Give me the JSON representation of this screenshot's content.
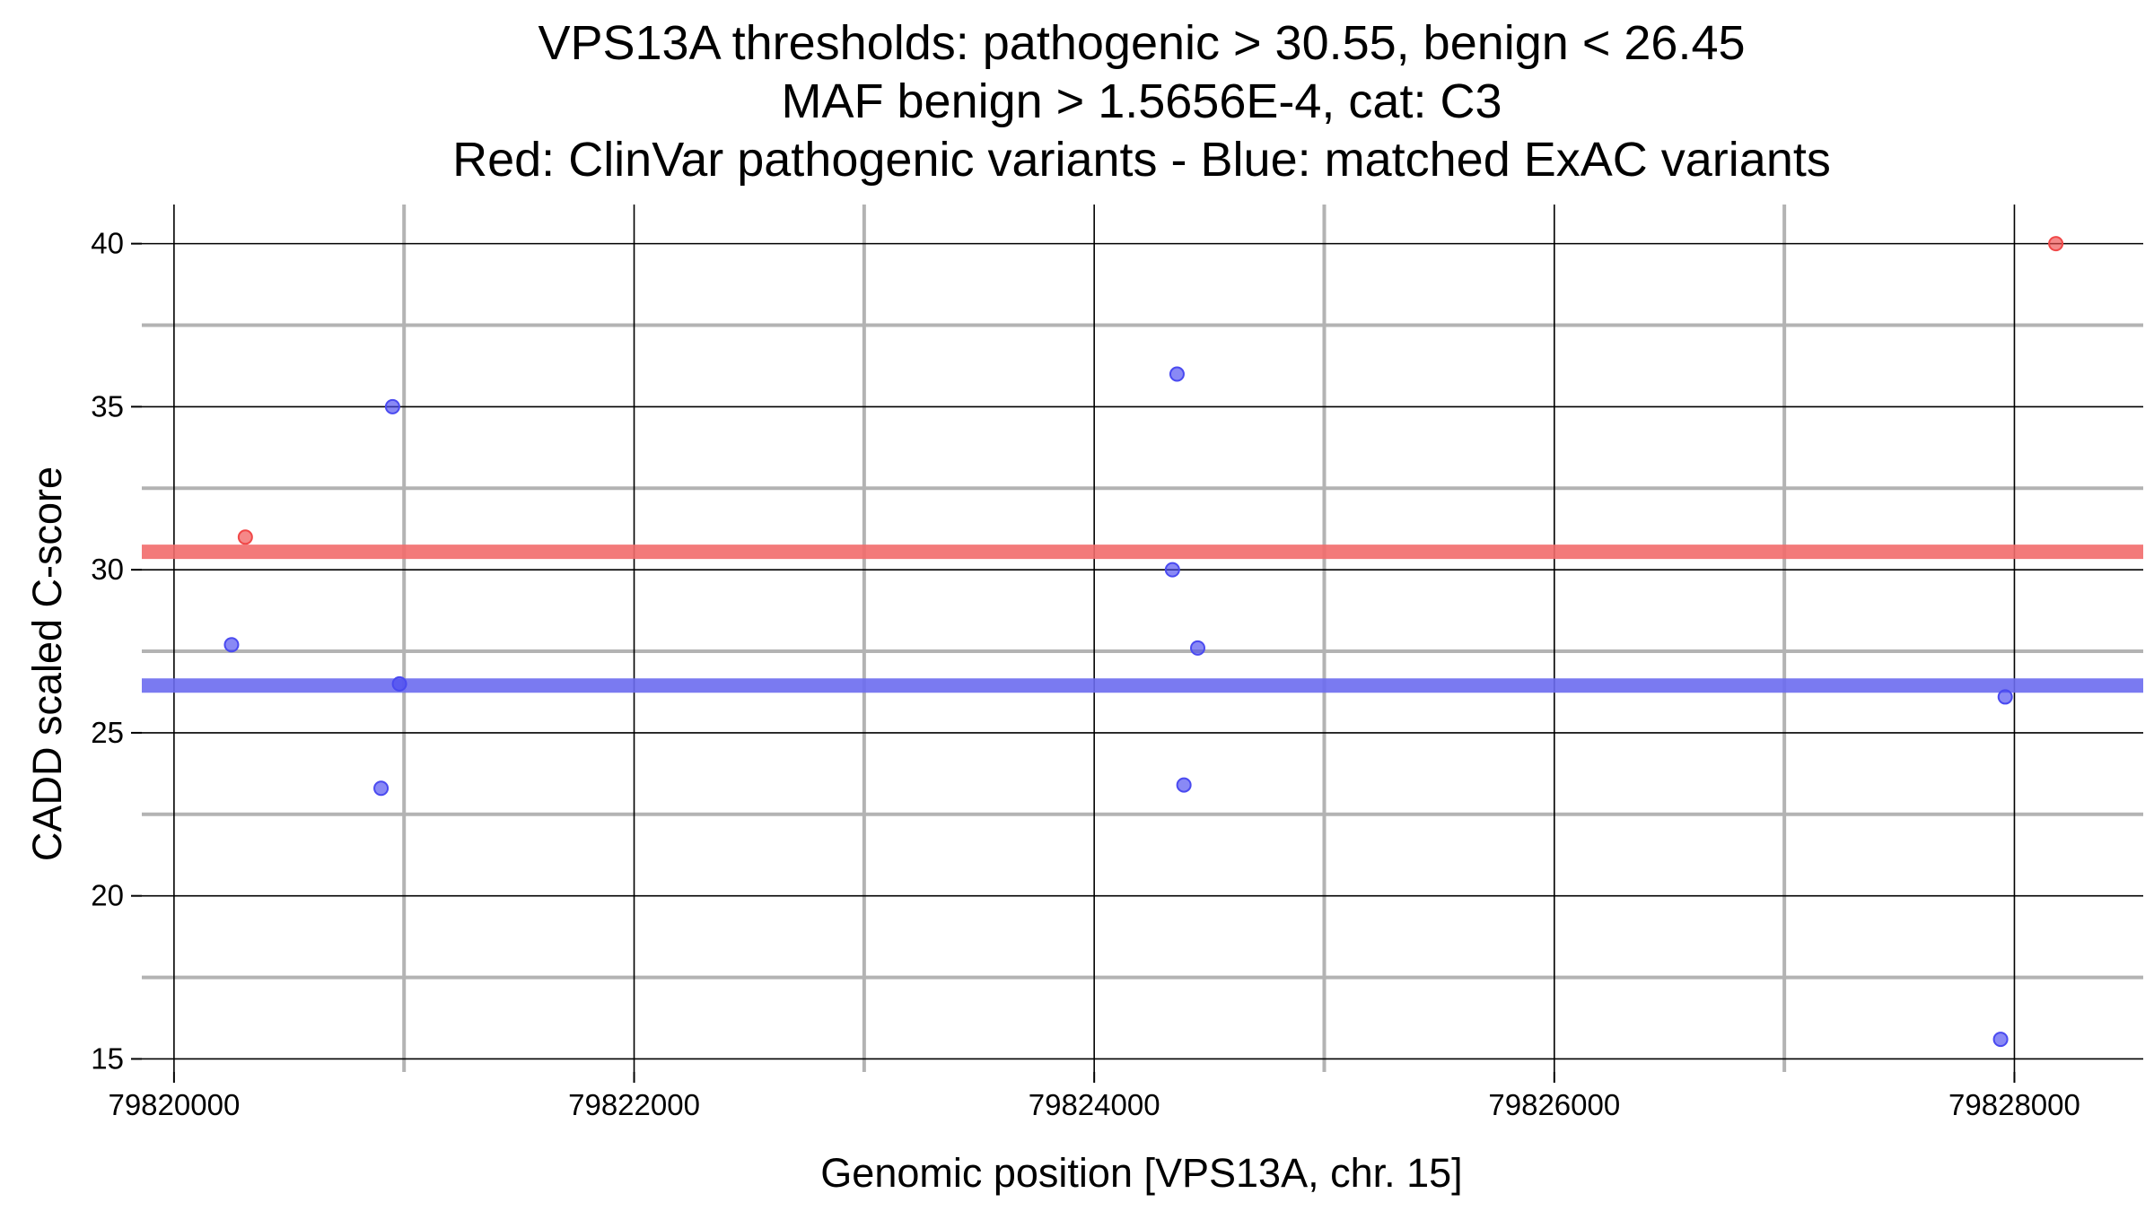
{
  "chart_data": {
    "type": "scatter",
    "title": [
      "VPS13A thresholds: pathogenic > 30.55, benign < 26.45",
      "MAF benign > 1.5656E-4, cat: C3",
      "Red: ClinVar pathogenic variants - Blue: matched ExAC variants"
    ],
    "xlabel": "Genomic position [VPS13A, chr. 15]",
    "ylabel": "CADD scaled C-score",
    "xlim": [
      79819860,
      79828560
    ],
    "ylim": [
      14.6,
      41.2
    ],
    "x_ticks": [
      79820000,
      79822000,
      79824000,
      79826000,
      79828000
    ],
    "x_tick_labels": [
      "79820000",
      "79822000",
      "79824000",
      "79826000",
      "79828000"
    ],
    "x_minor_ticks": [
      79821000,
      79823000,
      79825000,
      79827000
    ],
    "y_ticks": [
      15,
      20,
      25,
      30,
      35,
      40
    ],
    "y_tick_labels": [
      "15",
      "20",
      "25",
      "30",
      "35",
      "40"
    ],
    "y_minor_ticks": [
      17.5,
      22.5,
      27.5,
      32.5,
      37.5
    ],
    "thresholds": [
      {
        "name": "pathogenic",
        "value": 30.55,
        "color": "#f26b6b"
      },
      {
        "name": "benign",
        "value": 26.45,
        "color": "#6b6bf0"
      }
    ],
    "series": [
      {
        "name": "ClinVar pathogenic variants",
        "color": "#f04848",
        "points": [
          [
            79820310,
            31.0
          ],
          [
            79828180,
            40.0
          ]
        ]
      },
      {
        "name": "matched ExAC variants",
        "color": "#4a4af0",
        "points": [
          [
            79820250,
            27.7
          ],
          [
            79820950,
            35.0
          ],
          [
            79820900,
            23.3
          ],
          [
            79820980,
            26.5
          ],
          [
            79824360,
            36.0
          ],
          [
            79824340,
            30.0
          ],
          [
            79824450,
            27.6
          ],
          [
            79824390,
            23.4
          ],
          [
            79827960,
            26.1
          ],
          [
            79827940,
            15.6
          ]
        ]
      }
    ],
    "grid": true,
    "legend": "none"
  },
  "colors": {
    "major_grid": "#000000",
    "minor_grid": "#b3b3b3",
    "background": "#ffffff"
  }
}
